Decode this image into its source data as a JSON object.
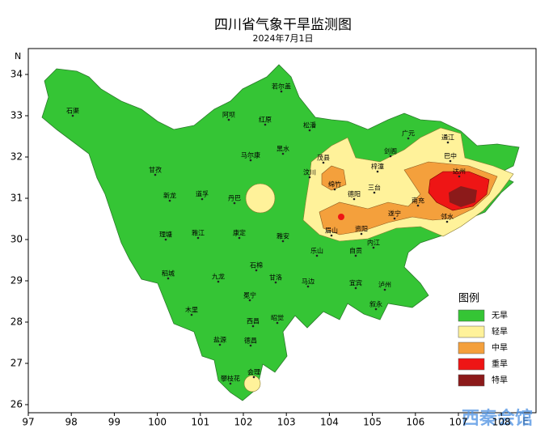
{
  "title": "四川省气象干旱监测图",
  "date": "2024年7月1日",
  "axes": {
    "x_ticks": [
      97,
      98,
      99,
      100,
      101,
      102,
      103,
      104,
      105,
      106,
      107,
      108
    ],
    "x_unit": "E",
    "y_ticks": [
      26,
      27,
      28,
      29,
      30,
      31,
      32,
      33,
      34
    ],
    "y_unit": "N"
  },
  "legend": {
    "title": "图例",
    "items": [
      {
        "label": "无旱",
        "color": "#35c535"
      },
      {
        "label": "轻旱",
        "color": "#fff29a"
      },
      {
        "label": "中旱",
        "color": "#f4a03c"
      },
      {
        "label": "重旱",
        "color": "#ee1515"
      },
      {
        "label": "特旱",
        "color": "#8c1a1a"
      }
    ]
  },
  "cities": [
    "石渠",
    "若尔盖",
    "阿坝",
    "红原",
    "松潘",
    "马尔康",
    "黑水",
    "甘孜",
    "新龙",
    "道孚",
    "丹巴",
    "理塘",
    "雅江",
    "康定",
    "稻城",
    "九龙",
    "石棉",
    "甘洛",
    "冕宁",
    "木里",
    "西昌",
    "昭觉",
    "盐源",
    "德昌",
    "会理",
    "攀枝花",
    "雅安",
    "乐山",
    "马边",
    "宜宾",
    "泸州",
    "叙永",
    "汶川",
    "茂县",
    "绵竹",
    "德阳",
    "三台",
    "梓潼",
    "剑阁",
    "广元",
    "通江",
    "巴中",
    "达州",
    "南充",
    "遂宁",
    "邻水",
    "资阳",
    "眉山",
    "内江",
    "自贡"
  ],
  "watermark": "西秦会馆"
}
